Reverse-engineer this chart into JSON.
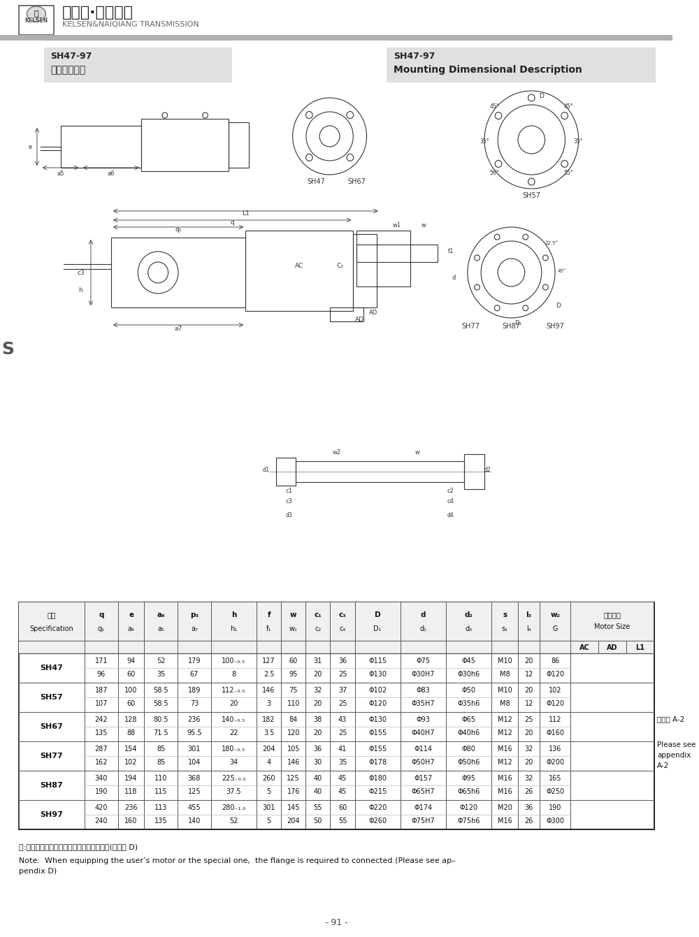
{
  "page_width": 10.0,
  "page_height": 13.41,
  "bg_color": "#ffffff",
  "header_line_color": "#aaaaaa",
  "title_left_1": "SH47-97",
  "title_left_2": "安装结构尺寸",
  "title_right_1": "SH47-97",
  "title_right_2": "Mounting Dimensional Description",
  "title_bg": "#e0e0e0",
  "company_name": "凯尔森·耐强传动",
  "company_sub": "KELSEN&NAIQIANG TRANSMISSION",
  "page_num": "- 91 -",
  "side_label": "S",
  "note_cn": "注:电机需方配或配特殊电机时需加联接法兰(见附录 D)",
  "note_en": "Note:  When equipping the user’s motor or the special one,  the flange is required to connected.(Please see ap–\npendix D)",
  "table_headers": [
    "规格\nSpecification",
    "q\nq₁",
    "e\na₄",
    "a₆\na₅",
    "p₃\na₇",
    "h\nh₁",
    "f\nf₁",
    "w\nw₁",
    "c₁\nc₂",
    "c₃\nc₄",
    "D\nD₁",
    "d\nd₁",
    "d₂\nd₃",
    "s\ns₁",
    "l₃\nl₄",
    "w₂\nG",
    "电机尺寸\nMotor Size"
  ],
  "motor_sub": [
    "AC",
    "AD",
    "L1"
  ],
  "table_data": [
    {
      "spec": "SH47",
      "row1": [
        "171",
        "94",
        "52",
        "179",
        "100₋₀.₅",
        "127",
        "60",
        "31",
        "36",
        "Φ115",
        "Φ75",
        "Φ45",
        "M10",
        "20",
        "86"
      ],
      "row2": [
        "96",
        "60",
        "35",
        "67",
        "8",
        "2.5",
        "95",
        "20",
        "25",
        "Φ130",
        "Φ30H7",
        "Φ30h6",
        "M8",
        "12",
        "Φ120"
      ]
    },
    {
      "spec": "SH57",
      "row1": [
        "187",
        "100",
        "58.5",
        "189",
        "112₋₀.₅",
        "146",
        "75",
        "32",
        "37",
        "Φ102",
        "Φ83",
        "Φ50",
        "M10",
        "20",
        "102"
      ],
      "row2": [
        "107",
        "60",
        "58.5",
        "73",
        "20",
        "3",
        "110",
        "20",
        "25",
        "Φ120",
        "Φ35H7",
        "Φ35h6",
        "M8",
        "12",
        "Φ120"
      ]
    },
    {
      "spec": "SH67",
      "row1": [
        "242",
        "128",
        "80.5",
        "236",
        "140₋₀.₅",
        "182",
        "84",
        "38",
        "43",
        "Φ130",
        "Φ93",
        "Φ65",
        "M12",
        "25",
        "112"
      ],
      "row2": [
        "135",
        "88",
        "71.5",
        "95.5",
        "22",
        "3.5",
        "120",
        "20",
        "25",
        "Φ155",
        "Φ40H7",
        "Φ40h6",
        "M12",
        "20",
        "Φ160"
      ]
    },
    {
      "spec": "SH77",
      "row1": [
        "287",
        "154",
        "85",
        "301",
        "180₋₀.₅",
        "204",
        "105",
        "36",
        "41",
        "Φ155",
        "Φ114",
        "Φ80",
        "M16",
        "32",
        "136"
      ],
      "row2": [
        "162",
        "102",
        "85",
        "104",
        "34",
        "4",
        "146",
        "30",
        "35",
        "Φ178",
        "Φ50H7",
        "Φ50h6",
        "M12",
        "20",
        "Φ200"
      ]
    },
    {
      "spec": "SH87",
      "row1": [
        "340",
        "194",
        "110",
        "368",
        "225₋₀.₅",
        "260",
        "125",
        "40",
        "45",
        "Φ180",
        "Φ157",
        "Φ95",
        "M16",
        "32",
        "165"
      ],
      "row2": [
        "190",
        "118",
        "115",
        "125",
        "37.5",
        "5",
        "176",
        "40",
        "45",
        "Φ215",
        "Φ65H7",
        "Φ65h6",
        "M16",
        "26",
        "Φ250"
      ]
    },
    {
      "spec": "SH97",
      "row1": [
        "420",
        "236",
        "113",
        "455",
        "280₋₁.₀",
        "301",
        "145",
        "55",
        "60",
        "Φ220",
        "Φ174",
        "Φ120",
        "M20",
        "36",
        "190"
      ],
      "row2": [
        "240",
        "160",
        "135",
        "140",
        "52",
        "5",
        "204",
        "50",
        "55",
        "Φ260",
        "Φ75H7",
        "Φ75h6",
        "M16",
        "26",
        "Φ300"
      ]
    }
  ],
  "see_appendix": "见附录 A-2\n\nPlease see\nappendix\nA-2"
}
